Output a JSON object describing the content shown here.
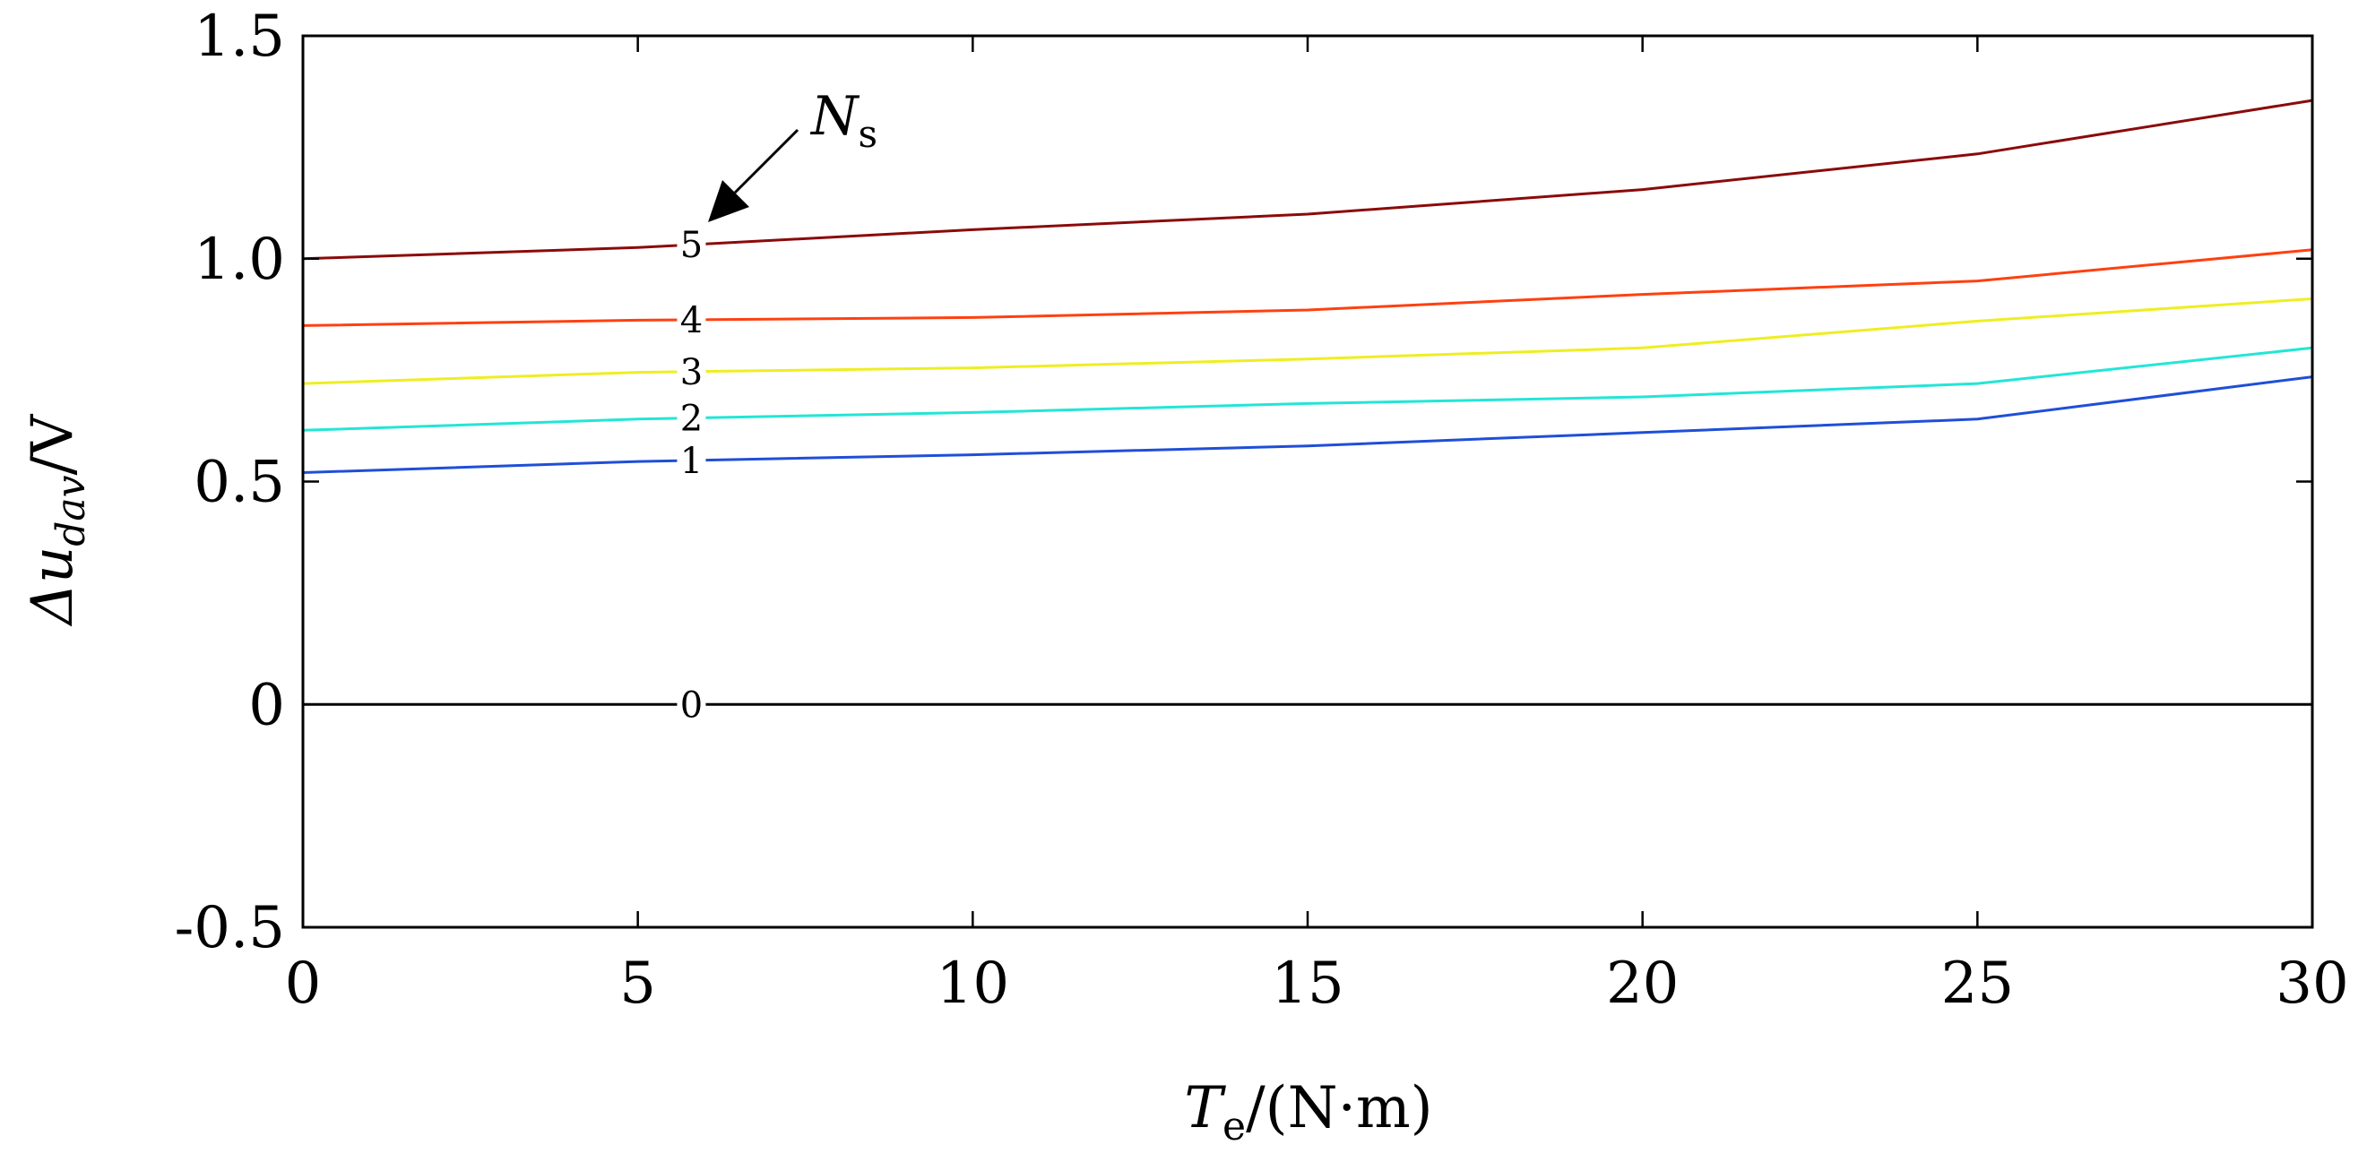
{
  "chart_data": {
    "type": "line",
    "title": "",
    "xlabel": {
      "main": "T",
      "sub": "e",
      "rest": "/(N·m)"
    },
    "ylabel": {
      "main": "Δu",
      "sub": "dav",
      "rest": "/V"
    },
    "xlim": [
      0,
      30
    ],
    "ylim": [
      -0.5,
      1.5
    ],
    "x_ticks": [
      0,
      5,
      10,
      15,
      20,
      25,
      30
    ],
    "x_tick_labels": [
      "0",
      "5",
      "10",
      "15",
      "20",
      "25",
      "30"
    ],
    "y_ticks": [
      -0.5,
      0,
      0.5,
      1.0,
      1.5
    ],
    "y_tick_labels": [
      "-0.5",
      "0",
      "0.5",
      "1.0",
      "1.5"
    ],
    "grid": false,
    "x": [
      0,
      5,
      10,
      15,
      20,
      25,
      30
    ],
    "series": [
      {
        "name": "0",
        "color": "#000000",
        "values": [
          0,
          0,
          0,
          0,
          0,
          0,
          0
        ]
      },
      {
        "name": "1",
        "color": "#1f4fd8",
        "values": [
          0.52,
          0.545,
          0.56,
          0.58,
          0.61,
          0.64,
          0.735
        ]
      },
      {
        "name": "2",
        "color": "#22e6d6",
        "values": [
          0.615,
          0.64,
          0.655,
          0.675,
          0.69,
          0.72,
          0.8
        ]
      },
      {
        "name": "3",
        "color": "#eeee22",
        "values": [
          0.72,
          0.745,
          0.755,
          0.775,
          0.8,
          0.86,
          0.91
        ]
      },
      {
        "name": "4",
        "color": "#ff4010",
        "values": [
          0.85,
          0.862,
          0.868,
          0.885,
          0.92,
          0.95,
          1.02
        ]
      },
      {
        "name": "5",
        "color": "#8b0a0a",
        "values": [
          1.0,
          1.025,
          1.065,
          1.1,
          1.155,
          1.235,
          1.355
        ]
      }
    ],
    "series_label_x": 5.8,
    "annotation": {
      "main": "N",
      "sub": "s"
    }
  }
}
